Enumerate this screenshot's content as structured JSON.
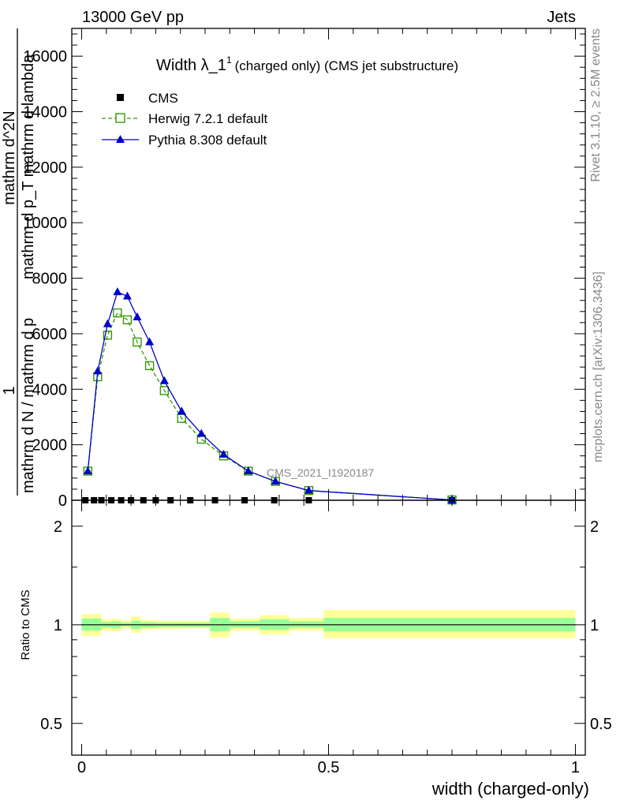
{
  "header": {
    "left": "13000 GeV pp",
    "right": "Jets"
  },
  "side_labels": {
    "rivet": "Rivet 3.1.10, ≥ 2.5M events",
    "mcplots": "mcplots.cern.ch [arXiv:1306.3436]"
  },
  "chart_data": [
    {
      "type": "line",
      "title_main": "Width λ_1",
      "title_sup": "1",
      "title_rest": "(charged only) (CMS jet substructure)",
      "ylabel_numerator": "1",
      "ylabel_den_part1": "mathrm d N / mathrm d p",
      "ylabel_den_part2": "mathrm d N / mathrm d p",
      "ylabel_top": "mathrm d^2N",
      "ylabel_top2": "mathrm d p_T mathrm d lambda",
      "xlabel": "width (charged-only)",
      "analysis_label": "CMS_2021_I1920187",
      "xlim": [
        -0.02,
        1.02
      ],
      "ylim": [
        0,
        17000
      ],
      "yticks": [
        0,
        2000,
        4000,
        6000,
        8000,
        10000,
        12000,
        14000,
        16000
      ],
      "ytick_labels": [
        "0",
        "2000",
        "4000",
        "6000",
        "8000",
        "10000",
        "12000",
        "14000",
        "16000"
      ],
      "legend_position": "top-left",
      "series": [
        {
          "name": "CMS",
          "color": "#000000",
          "marker": "square",
          "x": [
            0.0075,
            0.025,
            0.04,
            0.06,
            0.08,
            0.1,
            0.125,
            0.15,
            0.18,
            0.22,
            0.27,
            0.33,
            0.39,
            0.46,
            0.75
          ],
          "y": [
            0,
            0,
            0,
            0,
            0,
            0,
            0,
            0,
            0,
            0,
            0,
            0,
            0,
            0,
            0
          ]
        },
        {
          "name": "Herwig 7.2.1 default",
          "color": "#339900",
          "marker": "open-square",
          "dashed": true,
          "x": [
            0.0125,
            0.0325,
            0.0525,
            0.0725,
            0.0925,
            0.1125,
            0.1375,
            0.1675,
            0.2025,
            0.2425,
            0.2875,
            0.3375,
            0.3925,
            0.46,
            0.75
          ],
          "y": [
            1050,
            4450,
            5950,
            6750,
            6500,
            5700,
            4850,
            3950,
            2950,
            2200,
            1600,
            1050,
            680,
            350,
            10
          ]
        },
        {
          "name": "Pythia 8.308 default",
          "color": "#0000cc",
          "marker": "triangle",
          "dashed": false,
          "x": [
            0.0125,
            0.0325,
            0.0525,
            0.0725,
            0.0925,
            0.1125,
            0.1375,
            0.1675,
            0.2025,
            0.2425,
            0.2875,
            0.3375,
            0.3925,
            0.46,
            0.75
          ],
          "y": [
            1050,
            4650,
            6350,
            7500,
            7350,
            6600,
            5700,
            4300,
            3200,
            2400,
            1650,
            1050,
            680,
            350,
            10
          ]
        }
      ]
    },
    {
      "type": "area",
      "ylabel": "Ratio to CMS",
      "xlim": [
        -0.02,
        1.02
      ],
      "ylim": [
        0.4,
        2.4
      ],
      "log_scale_y": true,
      "yticks": [
        0.5,
        1,
        2
      ],
      "ytick_labels": [
        "0.5",
        "1",
        "2"
      ],
      "xticks": [
        0,
        0.5,
        1
      ],
      "xtick_labels": [
        "0",
        "0.5",
        "1"
      ],
      "bands": {
        "edges": [
          0.0,
          0.04,
          0.06,
          0.08,
          0.1,
          0.12,
          0.15,
          0.2,
          0.26,
          0.3,
          0.36,
          0.42,
          0.49,
          1.0
        ],
        "outer_lo": [
          0.925,
          0.96,
          0.955,
          0.975,
          0.945,
          0.965,
          0.97,
          0.975,
          0.915,
          0.96,
          0.935,
          0.96,
          0.91
        ],
        "outer_hi": [
          1.08,
          1.04,
          1.045,
          1.03,
          1.06,
          1.035,
          1.03,
          1.03,
          1.09,
          1.045,
          1.07,
          1.05,
          1.11
        ],
        "inner_lo": [
          0.96,
          0.98,
          0.975,
          0.99,
          0.97,
          0.98,
          0.985,
          0.985,
          0.955,
          0.98,
          0.965,
          0.98,
          0.955
        ],
        "inner_hi": [
          1.045,
          1.02,
          1.025,
          1.015,
          1.03,
          1.02,
          1.015,
          1.015,
          1.05,
          1.025,
          1.04,
          1.025,
          1.05
        ],
        "outer_color": "#ffff99",
        "inner_color": "#99ff99"
      }
    }
  ]
}
